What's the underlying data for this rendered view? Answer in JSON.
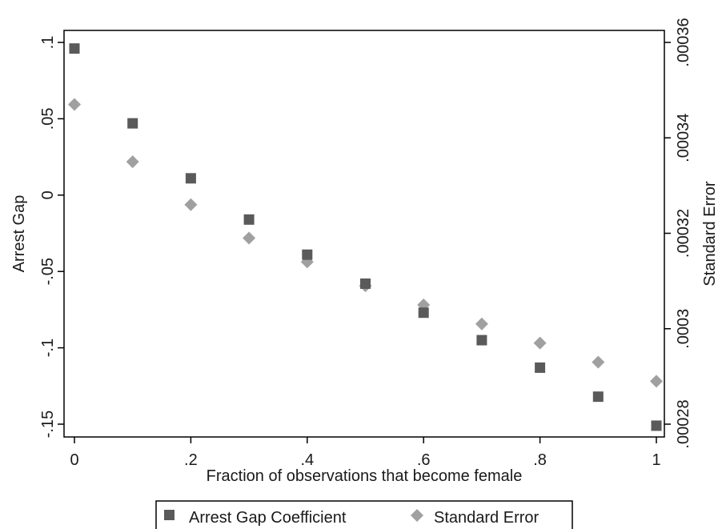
{
  "chart_data": {
    "type": "scatter",
    "title": "",
    "xlabel": "Fraction of observations that become female",
    "ylabel": "Arrest Gap",
    "y2label": "Standard Error",
    "xlim": [
      0,
      1
    ],
    "ylim": [
      -0.15,
      0.1
    ],
    "y2lim": [
      0.00028,
      0.00036
    ],
    "grid": false,
    "legend_position": "bottom",
    "x_ticks": [
      {
        "value": 0,
        "label": "0"
      },
      {
        "value": 0.2,
        "label": ".2"
      },
      {
        "value": 0.4,
        "label": ".4"
      },
      {
        "value": 0.6,
        "label": ".6"
      },
      {
        "value": 0.8,
        "label": ".8"
      },
      {
        "value": 1,
        "label": "1"
      }
    ],
    "y_ticks": [
      {
        "value": -0.15,
        "label": "-.15"
      },
      {
        "value": -0.1,
        "label": "-.1"
      },
      {
        "value": -0.05,
        "label": "-.05"
      },
      {
        "value": 0,
        "label": "0"
      },
      {
        "value": 0.05,
        "label": ".05"
      },
      {
        "value": 0.1,
        "label": ".1"
      }
    ],
    "y2_ticks": [
      {
        "value": 0.00028,
        "label": ".00028"
      },
      {
        "value": 0.0003,
        "label": ".0003"
      },
      {
        "value": 0.00032,
        "label": ".00032"
      },
      {
        "value": 0.00034,
        "label": ".00034"
      },
      {
        "value": 0.00036,
        "label": ".00036"
      }
    ],
    "x": [
      0,
      0.1,
      0.2,
      0.3,
      0.4,
      0.5,
      0.6,
      0.7,
      0.8,
      0.9,
      1
    ],
    "series": [
      {
        "name": "Arrest Gap Coefficient",
        "axis": "left",
        "marker": "square",
        "color": "#5a5a5a",
        "values": [
          0.096,
          0.047,
          0.011,
          -0.016,
          -0.039,
          -0.058,
          -0.077,
          -0.095,
          -0.113,
          -0.132,
          -0.151
        ]
      },
      {
        "name": "Standard Error",
        "axis": "right",
        "marker": "diamond",
        "color": "#a0a0a0",
        "values": [
          0.000347,
          0.000335,
          0.000326,
          0.000319,
          0.000314,
          0.000309,
          0.000305,
          0.000301,
          0.000297,
          0.000293,
          0.000289
        ]
      }
    ]
  }
}
